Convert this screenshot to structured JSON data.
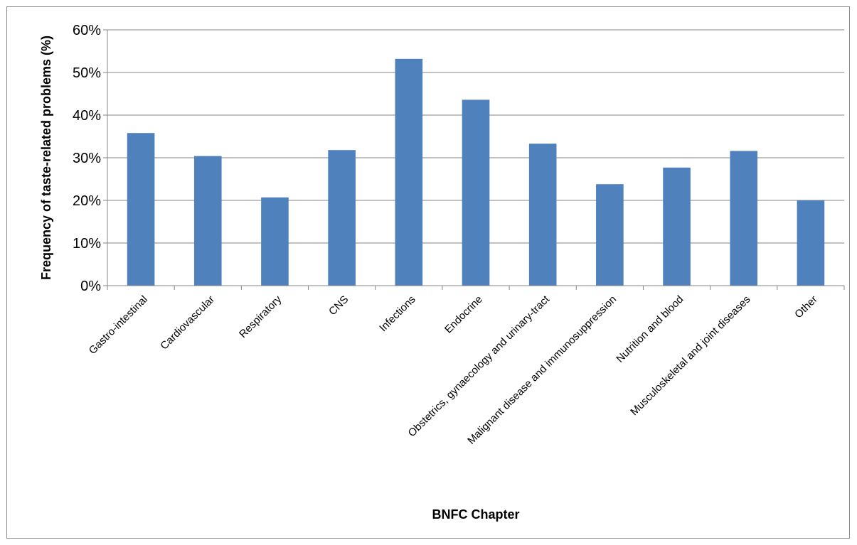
{
  "chart_data": {
    "type": "bar",
    "title": "",
    "xlabel": "BNFC Chapter",
    "ylabel": "Frequency of taste-related problems (%)",
    "categories": [
      "Gastro-intestinal",
      "Cardiovascular",
      "Respiratory",
      "CNS",
      "Infections",
      "Endocrine",
      "Obstetrics, gynaecology and urinary-tract",
      "Malignant disease and immunosuppression",
      "Nutrition and blood",
      "Musculoskeletal and joint diseases",
      "Other"
    ],
    "values": [
      35.8,
      30.4,
      20.7,
      31.8,
      53.2,
      43.6,
      33.3,
      23.8,
      27.7,
      31.6,
      20.0
    ],
    "ylim": [
      0,
      60
    ],
    "yticks": [
      0,
      10,
      20,
      30,
      40,
      50,
      60
    ],
    "ytick_labels": [
      "0%",
      "10%",
      "20%",
      "30%",
      "40%",
      "50%",
      "60%"
    ],
    "grid": true,
    "legend": "none",
    "bar_color": "#4f81bd"
  }
}
